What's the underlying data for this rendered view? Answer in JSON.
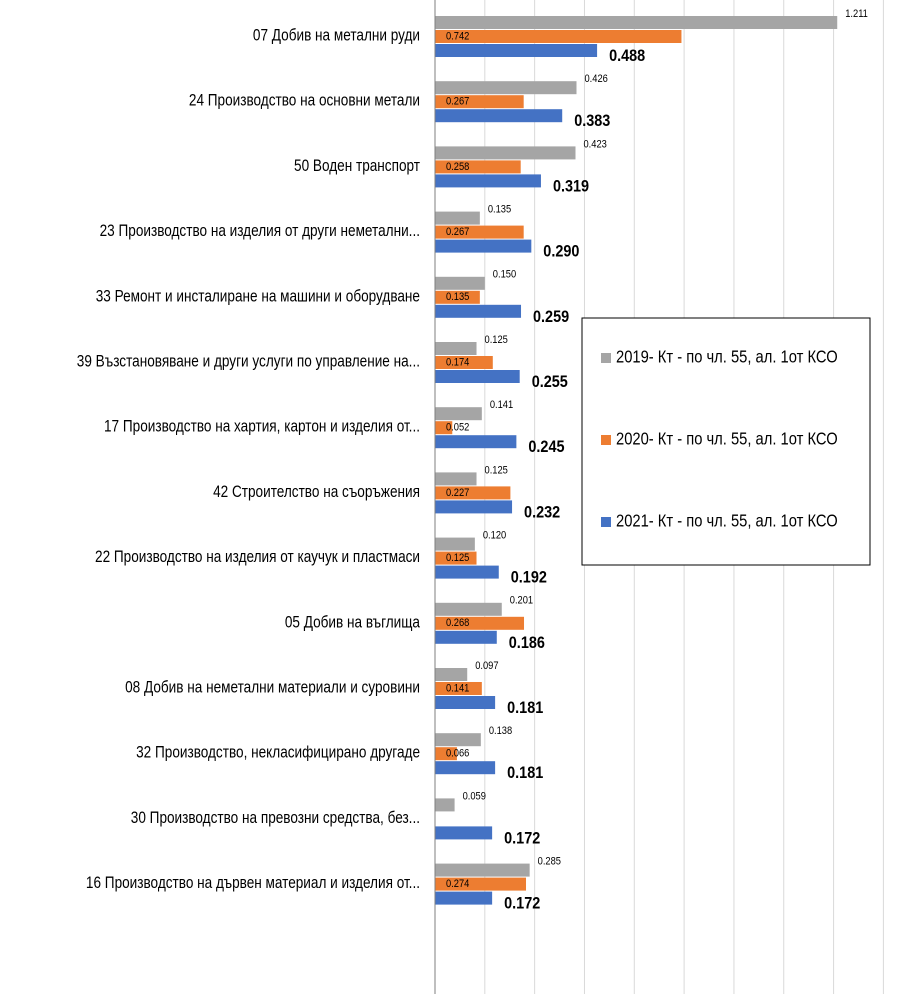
{
  "chart_data": {
    "type": "hbar",
    "categories": [
      "07 Добив на метални руди",
      "24 Производство на основни метали",
      "50 Воден транспорт",
      "23 Производство на изделия от други неметални...",
      "33 Ремонт и инсталиране на машини и оборудване",
      "39 Възстановяване и други услуги по управление на...",
      "17 Производство на хартия, картон и изделия от...",
      "42 Строителство на съоръжения",
      "22 Производство на изделия от каучук и пластмаси",
      "05 Добив на въглища",
      "08 Добив на неметални материали и суровини",
      "32 Производство, некласифицирано другаде",
      "30 Производство на превозни средства, без...",
      "16 Производство на дървен материал и изделия от..."
    ],
    "series": [
      {
        "name": "2019- Кт - по чл. 55, ал. 1от КСО",
        "color": "#a5a5a5",
        "values": [
          1.211,
          0.426,
          0.423,
          0.135,
          0.15,
          0.125,
          0.141,
          0.125,
          0.12,
          0.201,
          0.097,
          0.138,
          0.059,
          0.285
        ],
        "value_labels": [
          "1.211",
          "0.426",
          "0.423",
          "0.135",
          "0.150",
          "0.125",
          "0.141",
          "0.125",
          "0.120",
          "0.201",
          "0.097",
          "0.138",
          "0.059",
          "0.285"
        ]
      },
      {
        "name": "2020- Кт - по чл. 55, ал. 1от КСО",
        "color": "#ed7d31",
        "values": [
          0.742,
          0.267,
          0.258,
          0.267,
          0.135,
          0.174,
          0.052,
          0.227,
          0.125,
          0.268,
          0.141,
          0.066,
          null,
          0.274
        ],
        "value_labels": [
          "0.742",
          "0.267",
          "0.258",
          "0.267",
          "0.135",
          "0.174",
          "0.052",
          "0.227",
          "0.125",
          "0.268",
          "0.141",
          "0.066",
          null,
          "0.274"
        ]
      },
      {
        "name": "2021- Кт - по чл. 55, ал. 1от КСО",
        "color": "#4472c4",
        "values": [
          0.488,
          0.383,
          0.319,
          0.29,
          0.259,
          0.255,
          0.245,
          0.232,
          0.192,
          0.186,
          0.181,
          0.181,
          0.172,
          0.172
        ],
        "value_labels": [
          "0.488",
          "0.383",
          "0.319",
          "0.290",
          "0.259",
          "0.255",
          "0.245",
          "0.232",
          "0.192",
          "0.186",
          "0.181",
          "0.181",
          "0.172",
          "0.172"
        ]
      }
    ],
    "xlim": [
      0,
      1.4
    ],
    "xticks": [
      0,
      0.15,
      0.3,
      0.45,
      0.6,
      0.75,
      0.9,
      1.05,
      1.2,
      1.35
    ],
    "grid": true,
    "legend": "right"
  }
}
